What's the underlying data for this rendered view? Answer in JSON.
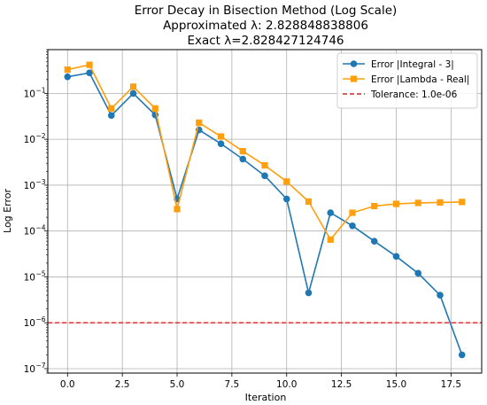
{
  "chart_data": {
    "type": "line",
    "title": "Error Decay in Bisection Method (Log Scale)",
    "title_lines": [
      "Error Decay in Bisection Method (Log Scale)",
      "Approximated λ: 2.828848838806",
      "Exact λ=2.828427124746"
    ],
    "xlabel": "Iteration",
    "ylabel": "Log Error",
    "yscale": "log",
    "xlim": [
      -0.9,
      18.9
    ],
    "ylim": [
      8e-08,
      0.9
    ],
    "xticks": [
      0,
      2.5,
      5,
      7.5,
      10,
      12.5,
      15,
      17.5
    ],
    "xtick_labels": [
      "0.0",
      "2.5",
      "5.0",
      "7.5",
      "10.0",
      "12.5",
      "15.0",
      "17.5"
    ],
    "yticks": [
      1e-07,
      1e-06,
      1e-05,
      0.0001,
      0.001,
      0.01,
      0.1
    ],
    "ytick_base": "10",
    "ytick_exponents": [
      "−7",
      "−6",
      "−5",
      "−4",
      "−3",
      "−2",
      "−1"
    ],
    "grid": true,
    "legend_position": "top-right",
    "series": [
      {
        "name": "Error |Integral - 3|",
        "color": "#1f77b4",
        "marker": "circle",
        "x": [
          0,
          1,
          2,
          3,
          4,
          5,
          6,
          7,
          8,
          9,
          10,
          11,
          12,
          13,
          14,
          15,
          16,
          17,
          18
        ],
        "y": [
          0.23,
          0.28,
          0.033,
          0.1,
          0.034,
          0.0005,
          0.016,
          0.008,
          0.0037,
          0.0016,
          0.0005,
          4.5e-06,
          0.00025,
          0.00013,
          6e-05,
          2.8e-05,
          1.2e-05,
          4e-06,
          2e-07
        ]
      },
      {
        "name": "Error |Lambda - Real|",
        "color": "#ff9f0e",
        "marker": "square",
        "x": [
          0,
          1,
          2,
          3,
          4,
          5,
          6,
          7,
          8,
          9,
          10,
          11,
          12,
          13,
          14,
          15,
          16,
          17,
          18
        ],
        "y": [
          0.33,
          0.42,
          0.047,
          0.14,
          0.047,
          0.0003,
          0.023,
          0.0115,
          0.0055,
          0.0027,
          0.0012,
          0.00044,
          6.5e-05,
          0.00025,
          0.00035,
          0.00039,
          0.00041,
          0.00042,
          0.00043
        ]
      }
    ],
    "reference_lines": [
      {
        "name": "Tolerance: 1.0e-06",
        "value": 1e-06,
        "color": "#d62728",
        "style": "dashed"
      }
    ]
  }
}
